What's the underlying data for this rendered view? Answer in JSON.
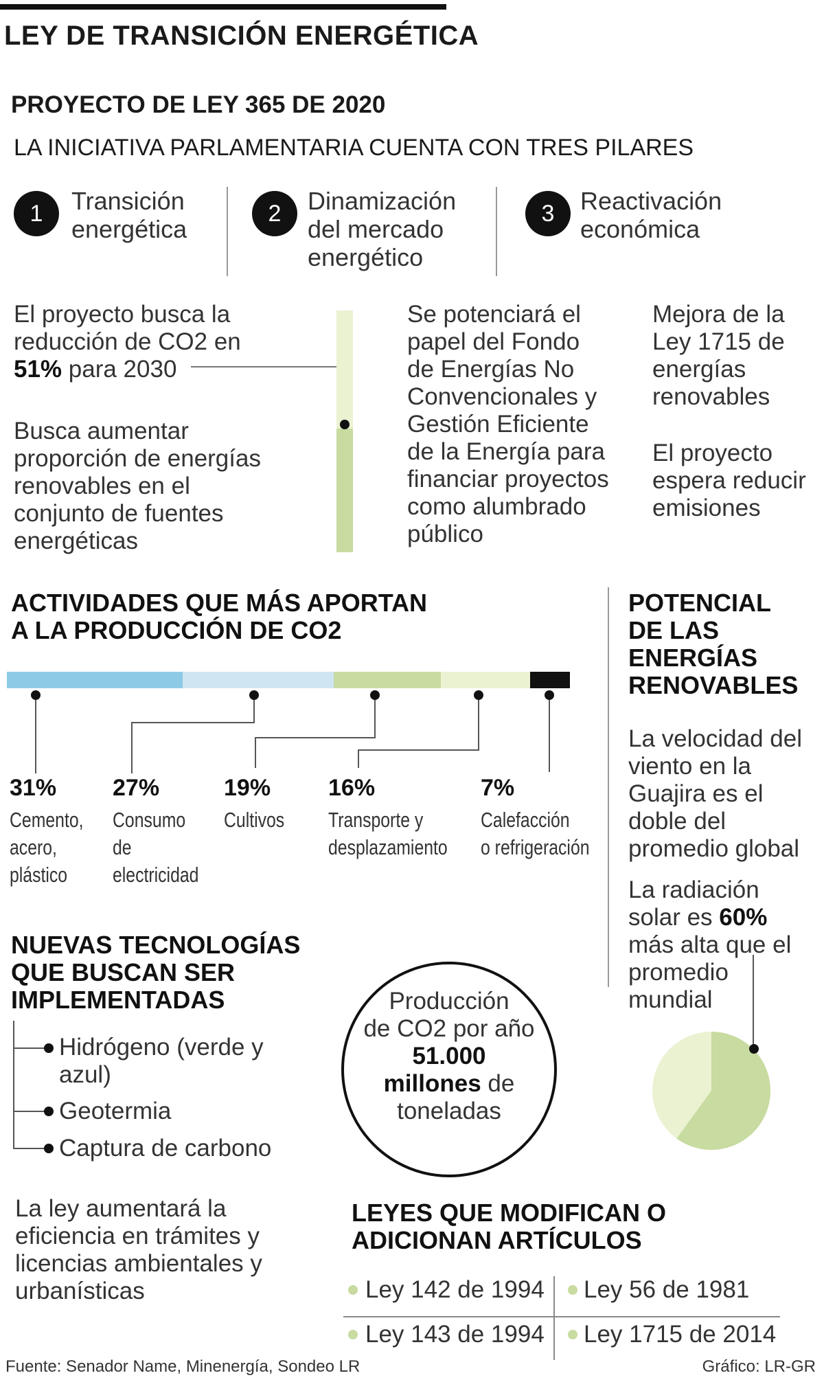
{
  "title": "LEY DE TRANSICIÓN ENERGÉTICA",
  "project": {
    "title": "PROYECTO DE LEY 365 DE 2020",
    "subtitle": "LA INICIATIVA PARLAMENTARIA CUENTA CON TRES PILARES"
  },
  "pillars": [
    {
      "number": "1",
      "line1": "Transición",
      "line2": "energética",
      "line3": ""
    },
    {
      "number": "2",
      "line1": "Dinamización",
      "line2": "del mercado",
      "line3": "energético"
    },
    {
      "number": "3",
      "line1": "Reactivación",
      "line2": "económica",
      "line3": ""
    }
  ],
  "column1": {
    "lines": [
      "El proyecto busca la",
      "reducción de CO2 en"
    ],
    "bold": "51%",
    "after": " para 2030",
    "p2": [
      "Busca aumentar",
      "proporción de energías",
      "renovables en el",
      "conjunto de fuentes",
      "energéticas"
    ]
  },
  "column2": [
    "Se potenciará el",
    "papel del Fondo",
    "de Energías No",
    "Convencionales y",
    "Gestión Eficiente",
    "de la Energía para",
    "financiar proyectos",
    "como alumbrado",
    "público"
  ],
  "column3": {
    "p1": [
      "Mejora de la",
      "Ley 1715 de",
      "energías",
      "renovables"
    ],
    "p2": [
      "El proyecto",
      "espera reducir",
      "emisiones"
    ]
  },
  "co2_target_progress_pct": 51,
  "activities": {
    "title1": "ACTIVIDADES QUE MÁS APORTAN",
    "title2": "A LA PRODUCCIÓN DE CO2",
    "items": [
      {
        "pct": "31%",
        "value": 31,
        "color": "#8ecae6",
        "lines": [
          "Cemento,",
          "acero,",
          "plástico"
        ]
      },
      {
        "pct": "27%",
        "value": 27,
        "color": "#cfe6f2",
        "lines": [
          "Consumo",
          "de",
          "electricidad"
        ]
      },
      {
        "pct": "19%",
        "value": 19,
        "color": "#c8dba0",
        "lines": [
          "Cultivos"
        ]
      },
      {
        "pct": "16%",
        "value": 16,
        "color": "#eaf2d2",
        "lines": [
          "Transporte y",
          "desplazamiento"
        ]
      },
      {
        "pct": "7%",
        "value": 7,
        "color": "#111111",
        "lines": [
          "Calefacción",
          "o refrigeración"
        ]
      }
    ]
  },
  "potential": {
    "title": [
      "POTENCIAL",
      "DE LAS",
      "ENERGÍAS",
      "RENOVABLES"
    ],
    "wind": [
      "La velocidad del",
      "viento en la",
      "Guajira es el",
      "doble del",
      "promedio global"
    ],
    "solar1": [
      "La radiación"
    ],
    "solar_pre": "solar es ",
    "solar_bold": "60%",
    "solar2": [
      "más alta que el",
      "promedio",
      "mundial"
    ],
    "pie_value": 60,
    "pie_colors": {
      "main": "#c8dba0",
      "rest": "#eaf2d2"
    }
  },
  "tech": {
    "title": [
      "NUEVAS TECNOLOGÍAS",
      "QUE BUSCAN SER",
      "IMPLEMENTADAS"
    ],
    "items": [
      [
        "Hidrógeno (verde y",
        "azul)"
      ],
      [
        "Geotermia"
      ],
      [
        "Captura de carbono"
      ]
    ]
  },
  "production": {
    "l1": "Producción",
    "l2": "de CO2 por año",
    "bold1": "51.000",
    "bold2": "millones",
    "l4": " de",
    "l5": "toneladas"
  },
  "efficiency": [
    "La ley aumentará la",
    "eficiencia en trámites y",
    "licencias ambientales y",
    "urbanísticas"
  ],
  "laws": {
    "title": [
      "LEYES QUE MODIFICAN O",
      "ADICIONAN ARTÍCULOS"
    ],
    "items": [
      "Ley 142 de 1994",
      "Ley 56 de 1981",
      "Ley 143 de 1994",
      "Ley 1715 de 2014"
    ]
  },
  "footer": {
    "source": "Fuente: Senador Name, Minenergía, Sondeo LR",
    "credit": "Gráfico: LR-GR"
  }
}
